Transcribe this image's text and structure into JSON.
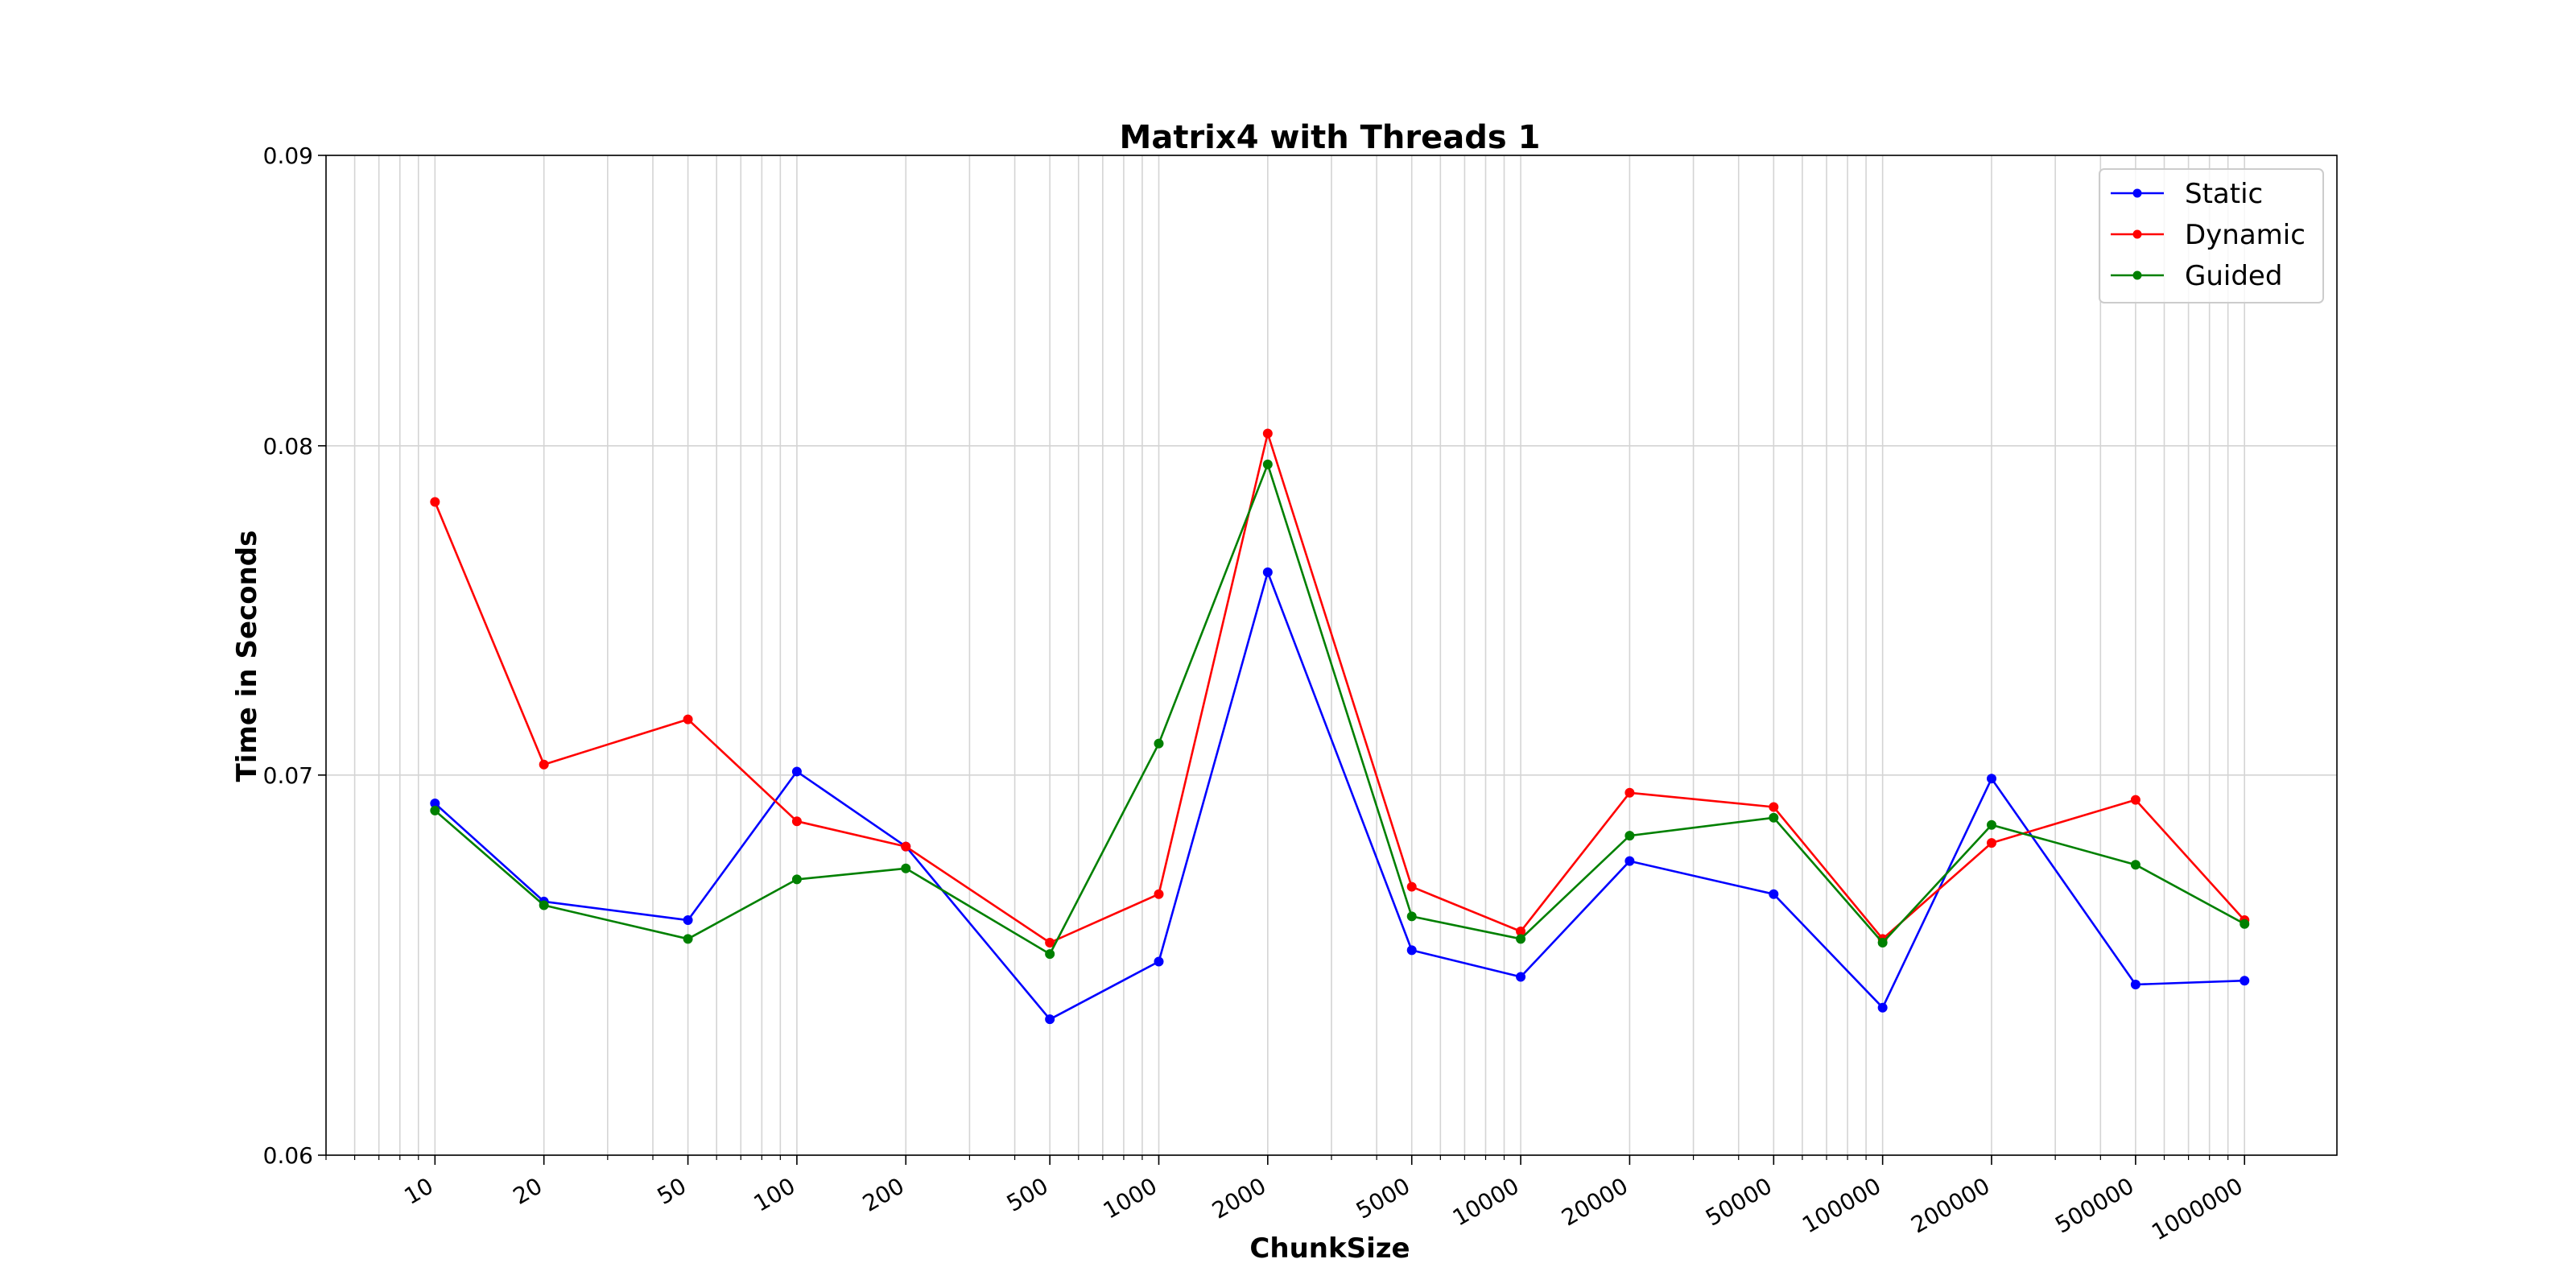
{
  "chart_data": {
    "type": "line",
    "title": "Matrix4 with Threads 1",
    "xlabel": "ChunkSize",
    "ylabel": "Time in Seconds",
    "xscale": "log",
    "yscale": "log",
    "ylim": [
      0.06,
      0.09
    ],
    "y_ticks": [
      "0.06",
      "0.07",
      "0.08",
      "0.09"
    ],
    "grid": true,
    "legend_position": "top-right",
    "x": [
      10,
      20,
      50,
      100,
      200,
      500,
      1000,
      2000,
      5000,
      10000,
      20000,
      50000,
      100000,
      200000,
      500000,
      1000000
    ],
    "x_tick_labels": [
      "10",
      "20",
      "50",
      "100",
      "200",
      "500",
      "1000",
      "2000",
      "5000",
      "10000",
      "20000",
      "50000",
      "100000",
      "200000",
      "500000",
      "1000000"
    ],
    "series": [
      {
        "name": "Static",
        "color": "#0000ff",
        "values": [
          0.0692,
          0.0665,
          0.066,
          0.0701,
          0.068,
          0.0634,
          0.0649,
          0.076,
          0.0652,
          0.0645,
          0.0676,
          0.0667,
          0.0637,
          0.0699,
          0.0643,
          0.0644
        ]
      },
      {
        "name": "Dynamic",
        "color": "#ff0000",
        "values": [
          0.0782,
          0.0703,
          0.0716,
          0.0687,
          0.068,
          0.0654,
          0.0667,
          0.0804,
          0.0669,
          0.0657,
          0.0695,
          0.0691,
          0.0655,
          0.0681,
          0.0693,
          0.066
        ]
      },
      {
        "name": "Guided",
        "color": "#008000",
        "values": [
          0.069,
          0.0664,
          0.0655,
          0.0671,
          0.0674,
          0.0651,
          0.0709,
          0.0794,
          0.0661,
          0.0655,
          0.0683,
          0.0688,
          0.0654,
          0.0686,
          0.0675,
          0.0659
        ]
      }
    ]
  }
}
